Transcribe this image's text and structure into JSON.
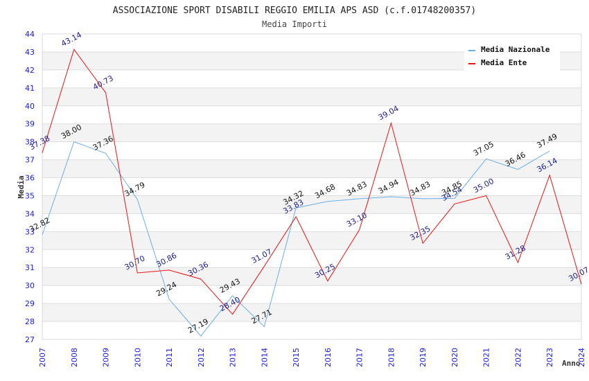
{
  "chart_data": {
    "type": "line",
    "title": "ASSOCIAZIONE SPORT DISABILI REGGIO EMILIA APS ASD (c.f.01748200357)",
    "subtitle": "Media Importi",
    "xlabel": "Anno",
    "ylabel": "Media",
    "ylim": [
      27,
      44
    ],
    "yticks": [
      "27",
      "28",
      "29",
      "30",
      "31",
      "32",
      "33",
      "34",
      "35",
      "36",
      "37",
      "38",
      "39",
      "40",
      "41",
      "42",
      "43",
      "44"
    ],
    "categories": [
      "2007",
      "2008",
      "2009",
      "2010",
      "2011",
      "2012",
      "2013",
      "2014",
      "2015",
      "2016",
      "2017",
      "2018",
      "2019",
      "2020",
      "2021",
      "2022",
      "2023",
      "2024"
    ],
    "grid": true,
    "legend_position": "top-right",
    "series": [
      {
        "name": "Media Nazionale",
        "color": "#6aaee8",
        "values": [
          32.82,
          38.0,
          37.36,
          34.79,
          29.24,
          27.19,
          29.43,
          27.71,
          34.32,
          34.68,
          34.83,
          34.94,
          34.83,
          34.85,
          37.05,
          36.46,
          37.49,
          null
        ],
        "labels": [
          "32.82",
          "38.00",
          "37.36",
          "34.79",
          "29.24",
          "27.19",
          "29.43",
          "27.71",
          "34.32",
          "34.68",
          "34.83",
          "34.94",
          "34.83",
          "34.85",
          "37.05",
          "36.46",
          "37.49",
          null
        ]
      },
      {
        "name": "Media Ente",
        "color": "#ee1111",
        "values": [
          37.38,
          43.14,
          40.73,
          30.7,
          30.86,
          30.36,
          28.4,
          31.07,
          33.83,
          30.25,
          33.1,
          39.04,
          32.35,
          34.54,
          35.0,
          31.28,
          36.14,
          30.07
        ],
        "labels": [
          "37.38",
          "43.14",
          "40.73",
          "30.70",
          "30.86",
          "30.36",
          "28.40",
          "31.07",
          "33.83",
          "30.25",
          "33.10",
          "39.04",
          "32.35",
          "34.54",
          "35.00",
          "31.28",
          "36.14",
          "30.07"
        ]
      }
    ]
  }
}
